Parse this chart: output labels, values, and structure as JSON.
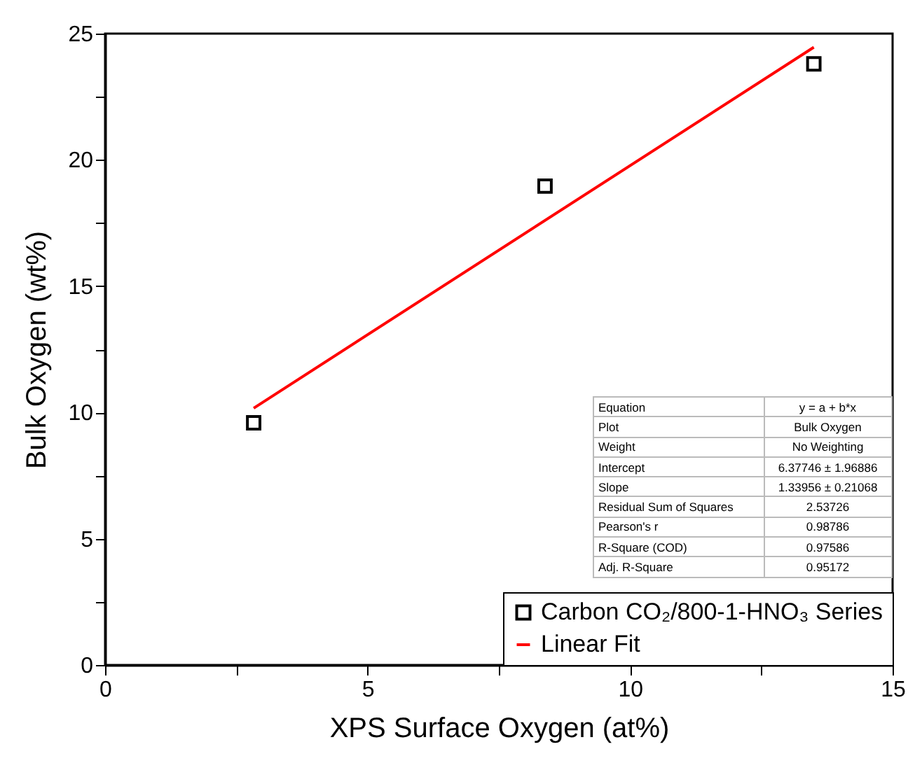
{
  "chart_data": {
    "type": "scatter",
    "xlabel": "XPS Surface Oxygen (at%)",
    "ylabel": "Bulk Oxygen (wt%)",
    "xlim": [
      0,
      15
    ],
    "ylim": [
      0,
      25
    ],
    "xticks": [
      0,
      {
        "value": 2.5,
        "label": null
      },
      5,
      {
        "value": 7.5,
        "label": null
      },
      10,
      {
        "value": 12.5,
        "label": null
      },
      15
    ],
    "yticks": [
      0,
      {
        "value": 2.5,
        "label": null
      },
      5,
      {
        "value": 7.5,
        "label": null
      },
      10,
      {
        "value": 12.5,
        "label": null
      },
      15,
      {
        "value": 17.5,
        "label": null
      },
      20,
      {
        "value": 22.5,
        "label": null
      },
      25
    ],
    "grid": false,
    "legend": "bottom right",
    "series": [
      {
        "name": "Carbon CO₂/800-1-HNO₃ Series",
        "marker": "square",
        "color": "#000000",
        "x": [
          2.83,
          8.38,
          13.5
        ],
        "values": [
          9.59,
          18.96,
          23.8
        ]
      },
      {
        "name": "Linear Fit",
        "type": "line",
        "line_style": "solid",
        "color": "#ff0000",
        "x": [
          2.83,
          13.5
        ],
        "values": [
          10.17,
          24.46
        ]
      }
    ],
    "annotations": [
      "Equation",
      "y = a + b*x",
      "Plot",
      "Bulk Oxygen",
      "Weight",
      "No Weighting",
      "Intercept",
      "6.37746 ± 1.96886",
      "Slope",
      "1.33956 ± 0.21068",
      "Residual Sum of Squares",
      "2.53726",
      "Pearson's r",
      "0.98786",
      "R-Square (COD)",
      "0.97586",
      "Adj. R-Square",
      "0.95172"
    ]
  }
}
